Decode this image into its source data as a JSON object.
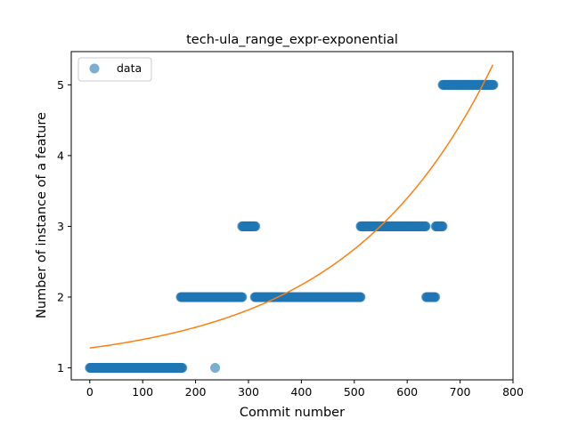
{
  "chart_data": {
    "type": "scatter",
    "title": "tech-ula_range_expr-exponential",
    "xlabel": "Commit number",
    "ylabel": "Number of instance of a feature",
    "xlim": [
      -35,
      800
    ],
    "ylim": [
      0.83,
      5.47
    ],
    "x_ticks": [
      0,
      100,
      200,
      300,
      400,
      500,
      600,
      700,
      800
    ],
    "y_ticks": [
      1,
      2,
      3,
      4,
      5
    ],
    "x_tick_labels": [
      "0",
      "100",
      "200",
      "300",
      "400",
      "500",
      "600",
      "700",
      "800"
    ],
    "y_tick_labels": [
      "1",
      "2",
      "3",
      "4",
      "5"
    ],
    "legend": {
      "placement": "top-left",
      "entries": [
        {
          "label": "data",
          "color": "#1f77b4",
          "marker": "circle"
        }
      ]
    },
    "colors": {
      "data": "#1f77b4",
      "fit": "#ff7f0e"
    },
    "grid": false,
    "data_segments": [
      {
        "x_start": 0,
        "x_end": 175,
        "y": 1
      },
      {
        "x_start": 237,
        "x_end": 237,
        "y": 1
      },
      {
        "x_start": 172,
        "x_end": 288,
        "y": 2
      },
      {
        "x_start": 312,
        "x_end": 512,
        "y": 2
      },
      {
        "x_start": 288,
        "x_end": 313,
        "y": 3
      },
      {
        "x_start": 512,
        "x_end": 635,
        "y": 3
      },
      {
        "x_start": 636,
        "x_end": 653,
        "y": 2
      },
      {
        "x_start": 654,
        "x_end": 667,
        "y": 3
      },
      {
        "x_start": 667,
        "x_end": 763,
        "y": 5
      }
    ],
    "fit_curve": {
      "name": "",
      "x": [
        0,
        50,
        100,
        150,
        200,
        250,
        300,
        350,
        400,
        450,
        500,
        550,
        600,
        650,
        700,
        750,
        763
      ],
      "y": [
        1.28,
        1.31,
        1.36,
        1.42,
        1.49,
        1.58,
        1.69,
        1.84,
        2.02,
        2.25,
        2.54,
        2.92,
        3.41,
        4.05,
        4.89,
        5.04,
        5.3
      ]
    }
  }
}
